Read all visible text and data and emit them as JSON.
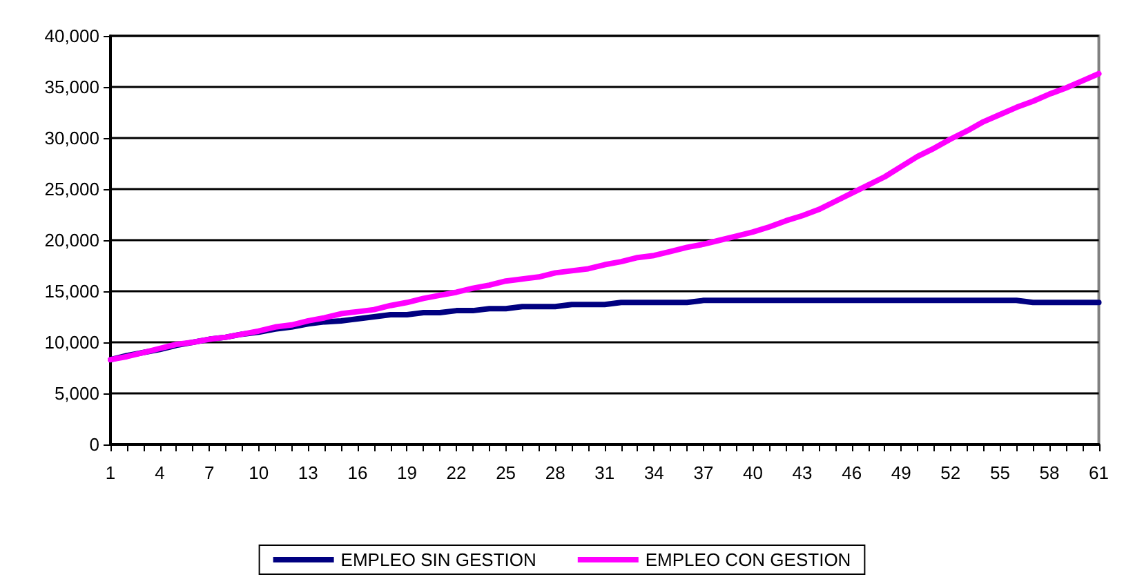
{
  "chart_data": {
    "type": "line",
    "categories": [
      "1",
      null,
      null,
      "4",
      null,
      null,
      "7",
      null,
      null,
      "10",
      null,
      null,
      "13",
      null,
      null,
      "16",
      null,
      null,
      "19",
      null,
      null,
      "22",
      null,
      null,
      "25",
      null,
      null,
      "28",
      null,
      null,
      "31",
      null,
      null,
      "34",
      null,
      null,
      "37",
      null,
      null,
      "40",
      null,
      null,
      "43",
      null,
      null,
      "46",
      null,
      null,
      "49",
      null,
      null,
      "52",
      null,
      null,
      "55",
      null,
      null,
      "58",
      null,
      null,
      "61"
    ],
    "series": [
      {
        "name": "EMPLEO SIN GESTION",
        "color": "#000080",
        "values": [
          8300,
          8700,
          9000,
          9300,
          9700,
          10000,
          10300,
          10500,
          10800,
          11000,
          11300,
          11500,
          11800,
          12000,
          12100,
          12300,
          12500,
          12700,
          12700,
          12900,
          12900,
          13100,
          13100,
          13300,
          13300,
          13500,
          13500,
          13500,
          13700,
          13700,
          13700,
          13900,
          13900,
          13900,
          13900,
          13900,
          14100,
          14100,
          14100,
          14100,
          14100,
          14100,
          14100,
          14100,
          14100,
          14100,
          14100,
          14100,
          14100,
          14100,
          14100,
          14100,
          14100,
          14100,
          14100,
          14100,
          13900,
          13900,
          13900,
          13900,
          13900
        ]
      },
      {
        "name": "EMPLEO CON GESTION",
        "color": "#ff00ff",
        "values": [
          8300,
          8600,
          9000,
          9400,
          9800,
          10000,
          10300,
          10500,
          10800,
          11100,
          11500,
          11700,
          12100,
          12400,
          12800,
          13000,
          13200,
          13600,
          13900,
          14300,
          14600,
          14900,
          15300,
          15600,
          16000,
          16200,
          16400,
          16800,
          17000,
          17200,
          17600,
          17900,
          18300,
          18500,
          18900,
          19300,
          19600,
          20000,
          20400,
          20800,
          21300,
          21900,
          22400,
          23000,
          23800,
          24600,
          25400,
          26200,
          27200,
          28200,
          29000,
          29900,
          30700,
          31600,
          32300,
          33000,
          33600,
          34300,
          34900,
          35600,
          36300
        ]
      }
    ],
    "ylim": [
      0,
      40000
    ],
    "yticks": [
      0,
      {
        "value": 5000,
        "label": "5,000"
      },
      {
        "value": 10000,
        "label": "10,000"
      },
      {
        "value": 15000,
        "label": "15,000"
      },
      {
        "value": 20000,
        "label": "20,000"
      },
      {
        "value": 25000,
        "label": "25,000"
      },
      {
        "value": 30000,
        "label": "30,000"
      },
      {
        "value": 35000,
        "label": "35,000"
      },
      {
        "value": 40000,
        "label": "40,000"
      }
    ],
    "grid": "y",
    "legend": "bottom",
    "marker": "none",
    "line_style": "solid"
  }
}
